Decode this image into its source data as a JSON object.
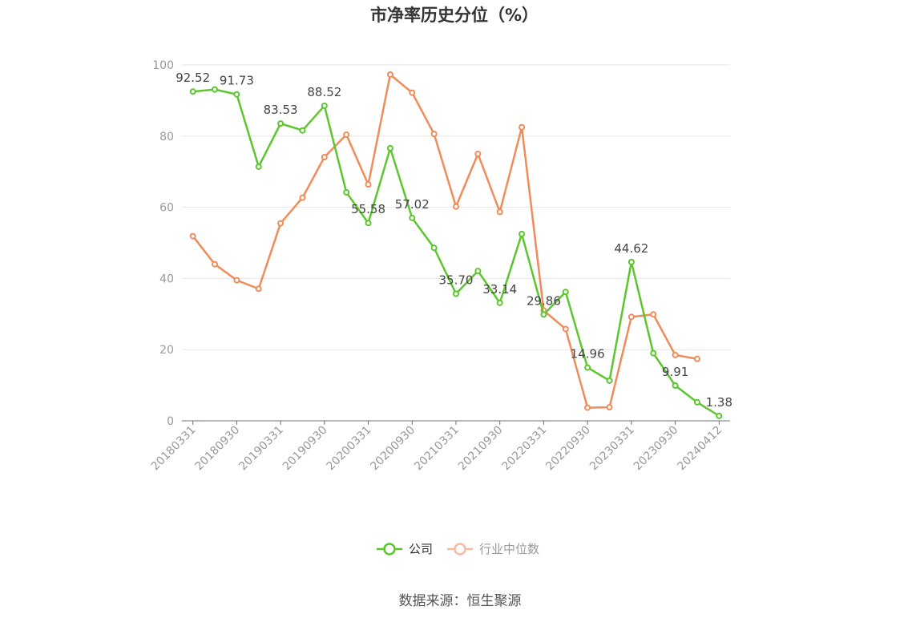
{
  "chart_data": {
    "type": "line",
    "title": "市净率历史分位（%）",
    "source": "数据来源：恒生聚源",
    "ylim": [
      0,
      100
    ],
    "yticks": [
      0,
      20,
      40,
      60,
      80,
      100
    ],
    "x": [
      "20180331",
      "20180630",
      "20180930",
      "20181231",
      "20190331",
      "20190630",
      "20190930",
      "20191231",
      "20200331",
      "20200630",
      "20200930",
      "20201231",
      "20210331",
      "20210630",
      "20210930",
      "20211231",
      "20220331",
      "20220630",
      "20220930",
      "20221231",
      "20230331",
      "20230630",
      "20230930",
      "20231231",
      "20240412"
    ],
    "xtick_labels": [
      "20180331",
      "20180930",
      "20190331",
      "20190930",
      "20200331",
      "20200930",
      "20210331",
      "20210930",
      "20220331",
      "20220930",
      "20230331",
      "20230930",
      "20240412"
    ],
    "grid": true,
    "legend_position": "bottom-center",
    "series": [
      {
        "name": "公司",
        "color": "#5dc62e",
        "values": [
          92.52,
          93.1,
          91.73,
          71.4,
          83.53,
          81.6,
          88.52,
          64.2,
          55.58,
          76.6,
          57.02,
          48.6,
          35.7,
          42.1,
          33.14,
          52.5,
          29.86,
          36.2,
          14.96,
          11.3,
          44.62,
          19.0,
          9.91,
          5.2,
          1.38
        ],
        "labels": {
          "0": "92.52",
          "2": "91.73",
          "4": "83.53",
          "6": "88.52",
          "8": "55.58",
          "10": "57.02",
          "12": "35.70",
          "14": "33.14",
          "16": "29.86",
          "18": "14.96",
          "20": "44.62",
          "22": "9.91",
          "24": "1.38"
        }
      },
      {
        "name": "行业中位数",
        "color": "#f08c5a",
        "values": [
          51.9,
          44.0,
          39.5,
          37.1,
          55.5,
          62.7,
          74.1,
          80.4,
          66.4,
          97.3,
          92.2,
          80.6,
          60.2,
          75.0,
          58.7,
          82.5,
          31.0,
          25.8,
          3.7,
          3.8,
          29.2,
          29.9,
          18.5,
          17.4,
          null
        ]
      }
    ]
  }
}
